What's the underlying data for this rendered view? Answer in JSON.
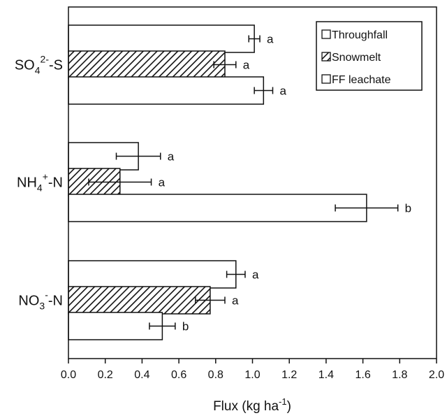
{
  "chart_data": {
    "type": "bar",
    "orientation": "horizontal",
    "xlabel": "Flux (kg ha",
    "xlabel_sup": "-1",
    "xlabel_end": ")",
    "xlim": [
      0.0,
      2.0
    ],
    "xticks": [
      "0.0",
      "0.2",
      "0.4",
      "0.6",
      "0.8",
      "1.0",
      "1.2",
      "1.4",
      "1.6",
      "1.8",
      "2.0"
    ],
    "categories": [
      {
        "base": "SO",
        "sub": "4",
        "sup": "2-",
        "tail": "-S"
      },
      {
        "base": "NH",
        "sub": "4",
        "sup": "+",
        "tail": "-N"
      },
      {
        "base": "NO",
        "sub": "3",
        "sup": "-",
        "tail": "-N"
      }
    ],
    "series": [
      {
        "name": "Throughfall",
        "pattern": "open",
        "values": [
          1.01,
          0.38,
          0.91
        ],
        "errors": [
          0.03,
          0.12,
          0.05
        ],
        "letters": [
          "a",
          "a",
          "a"
        ]
      },
      {
        "name": "Snowmelt",
        "pattern": "hatched",
        "values": [
          0.85,
          0.28,
          0.77
        ],
        "errors": [
          0.06,
          0.17,
          0.08
        ],
        "letters": [
          "a",
          "a",
          "a"
        ]
      },
      {
        "name": "FF leachate",
        "pattern": "open",
        "values": [
          1.06,
          1.62,
          0.51
        ],
        "errors": [
          0.05,
          0.17,
          0.07
        ],
        "letters": [
          "a",
          "b",
          "b"
        ]
      }
    ],
    "legend_position": "top-right",
    "grid": false,
    "colors": {
      "bar_fill": "#ffffff",
      "stroke": "#111111",
      "hatch": "#111111"
    }
  }
}
